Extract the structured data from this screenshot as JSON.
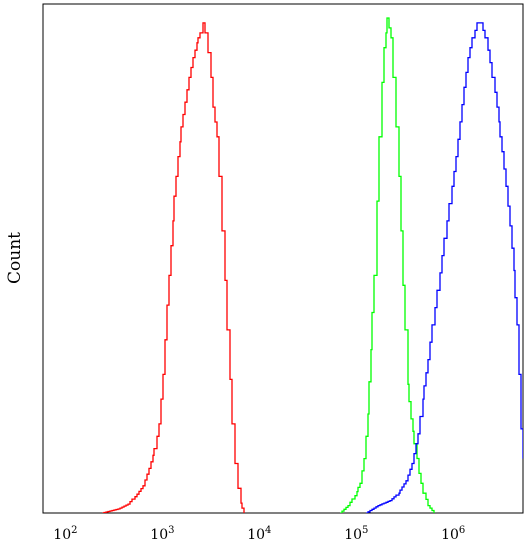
{
  "chart_data": {
    "type": "line",
    "title": "",
    "xlabel": "",
    "ylabel": "Count",
    "xscale": "log",
    "xlim": [
      56,
      5000000
    ],
    "ylim": [
      0,
      100
    ],
    "grid": false,
    "legend": "none",
    "x_ticks": [
      {
        "base": "10",
        "exp": "2",
        "value": 100
      },
      {
        "base": "10",
        "exp": "3",
        "value": 1000
      },
      {
        "base": "10",
        "exp": "4",
        "value": 10000
      },
      {
        "base": "10",
        "exp": "5",
        "value": 100000
      },
      {
        "base": "10",
        "exp": "6",
        "value": 1000000
      }
    ],
    "series": [
      {
        "color": "#ff0000",
        "points": [
          [
            230,
            0
          ],
          [
            330,
            0.8
          ],
          [
            420,
            1.8
          ],
          [
            520,
            3.8
          ],
          [
            600,
            5.5
          ],
          [
            700,
            9
          ],
          [
            790,
            13
          ],
          [
            880,
            18
          ],
          [
            960,
            28
          ],
          [
            1060,
            42
          ],
          [
            1160,
            54
          ],
          [
            1270,
            64
          ],
          [
            1380,
            72
          ],
          [
            1500,
            78
          ],
          [
            1620,
            83
          ],
          [
            1780,
            88
          ],
          [
            1960,
            92
          ],
          [
            2150,
            95
          ],
          [
            2350,
            97
          ],
          [
            2500,
            99
          ],
          [
            2650,
            97
          ],
          [
            2800,
            93
          ],
          [
            3000,
            88
          ],
          [
            3200,
            82
          ],
          [
            3450,
            76
          ],
          [
            3700,
            68
          ],
          [
            3950,
            57
          ],
          [
            4200,
            47
          ],
          [
            4450,
            37
          ],
          [
            4700,
            27
          ],
          [
            5000,
            18
          ],
          [
            5350,
            10
          ],
          [
            5700,
            5
          ],
          [
            6100,
            2
          ],
          [
            6600,
            0
          ]
        ]
      },
      {
        "color": "#00ff00",
        "points": [
          [
            65000,
            0
          ],
          [
            78000,
            1.5
          ],
          [
            92000,
            3.5
          ],
          [
            105000,
            6
          ],
          [
            115000,
            11
          ],
          [
            125000,
            20
          ],
          [
            135000,
            33
          ],
          [
            145000,
            48
          ],
          [
            155000,
            63
          ],
          [
            165000,
            76
          ],
          [
            175000,
            87
          ],
          [
            185000,
            94
          ],
          [
            200000,
            100
          ],
          [
            215000,
            96
          ],
          [
            230000,
            88
          ],
          [
            245000,
            78
          ],
          [
            260000,
            68
          ],
          [
            275000,
            57
          ],
          [
            290000,
            46
          ],
          [
            305000,
            37
          ],
          [
            325000,
            26
          ],
          [
            350000,
            19
          ],
          [
            380000,
            14
          ],
          [
            420000,
            8
          ],
          [
            470000,
            4
          ],
          [
            520000,
            1.5
          ],
          [
            600000,
            0
          ]
        ]
      },
      {
        "color": "#0000ff",
        "points": [
          [
            120000,
            0
          ],
          [
            160000,
            1.5
          ],
          [
            210000,
            2.5
          ],
          [
            260000,
            4
          ],
          [
            310000,
            6.5
          ],
          [
            360000,
            10
          ],
          [
            410000,
            16
          ],
          [
            460000,
            23
          ],
          [
            520000,
            31
          ],
          [
            580000,
            38
          ],
          [
            650000,
            45
          ],
          [
            730000,
            52
          ],
          [
            820000,
            59
          ],
          [
            920000,
            66
          ],
          [
            1020000,
            72
          ],
          [
            1120000,
            79
          ],
          [
            1230000,
            86
          ],
          [
            1360000,
            92
          ],
          [
            1500000,
            96
          ],
          [
            1680000,
            99
          ],
          [
            1850000,
            99
          ],
          [
            2050000,
            96
          ],
          [
            2300000,
            91
          ],
          [
            2550000,
            85
          ],
          [
            2800000,
            79
          ],
          [
            3050000,
            73
          ],
          [
            3350000,
            66
          ],
          [
            3650000,
            58
          ],
          [
            4000000,
            49
          ],
          [
            4300000,
            38
          ],
          [
            4550000,
            28
          ],
          [
            4800000,
            17
          ],
          [
            5000000,
            11
          ]
        ]
      }
    ]
  }
}
